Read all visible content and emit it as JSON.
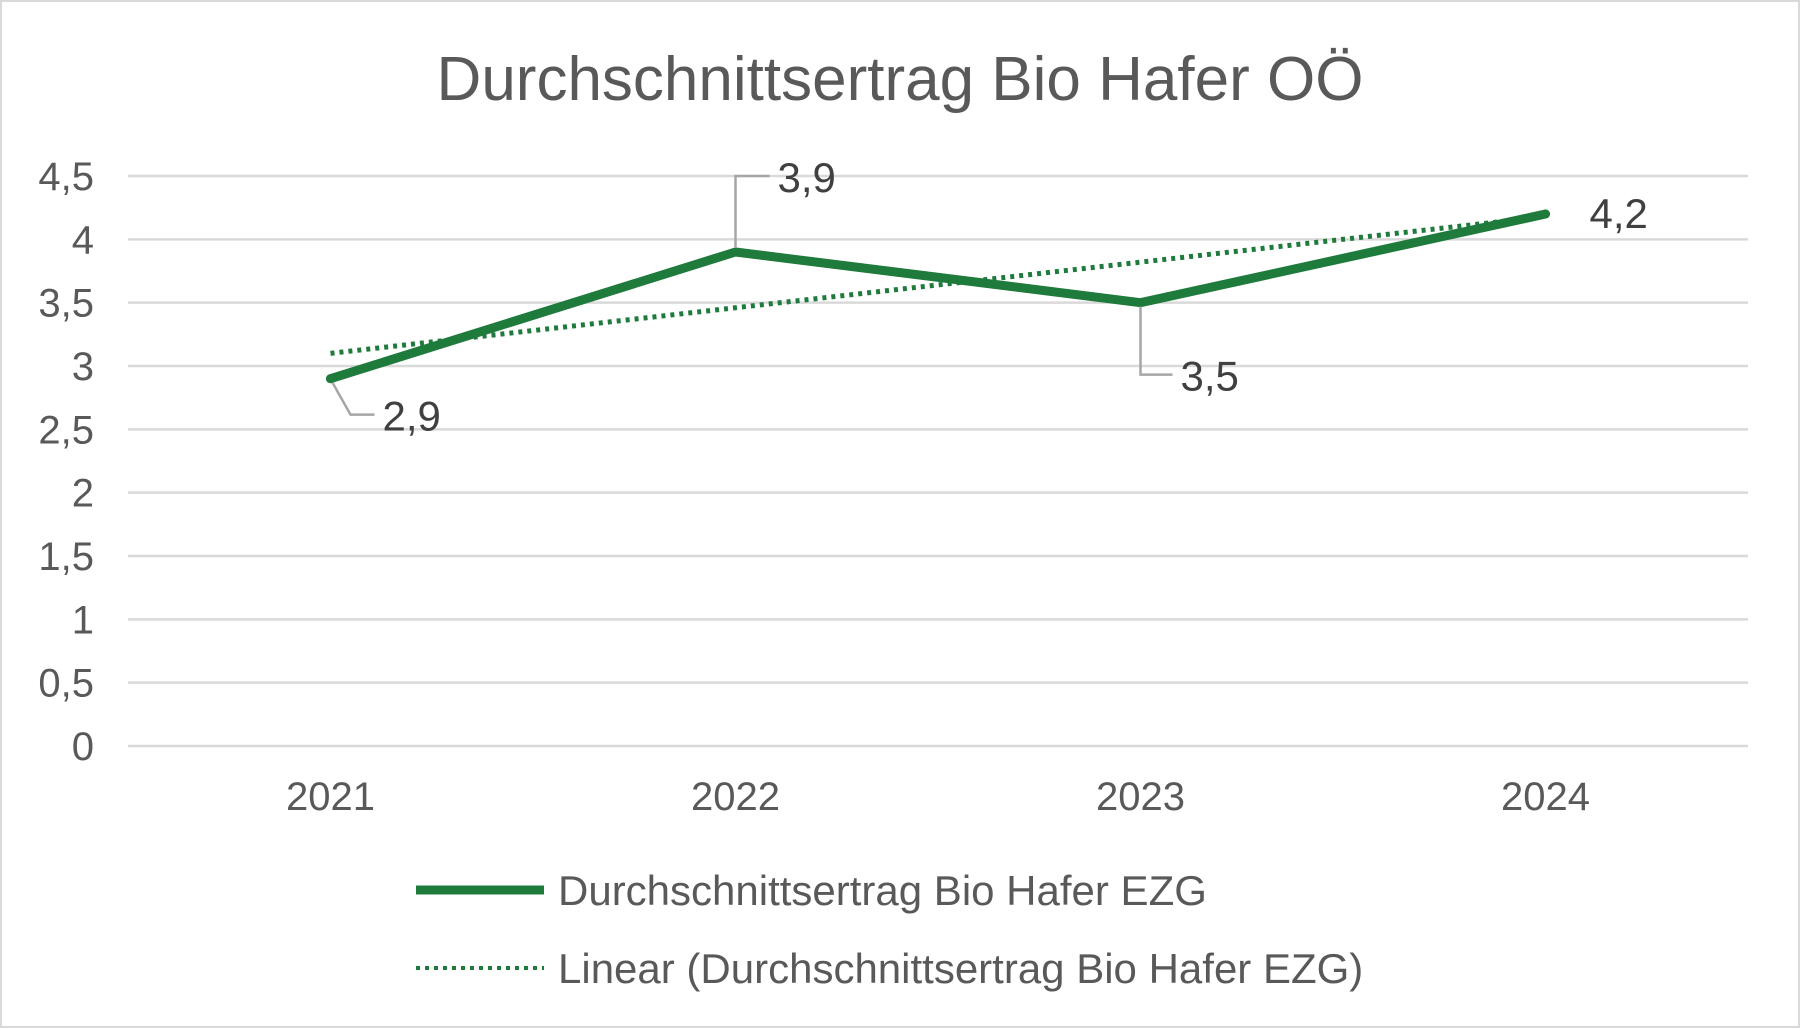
{
  "chart_data": {
    "type": "line",
    "title": "Durchschnittsertrag Bio Hafer OÖ",
    "xlabel": "",
    "ylabel": "",
    "categories": [
      "2021",
      "2022",
      "2023",
      "2024"
    ],
    "series": [
      {
        "name": "Durchschnittsertrag Bio Hafer EZG",
        "values": [
          2.9,
          3.9,
          3.5,
          4.2
        ],
        "data_labels": [
          "2,9",
          "3,9",
          "3,5",
          "4,2"
        ],
        "color": "#1e7b3c"
      },
      {
        "name": "Linear (Durchschnittsertrag Bio Hafer EZG)",
        "values": [
          3.1,
          3.46,
          3.82,
          4.18
        ],
        "color": "#1e7b3c",
        "style": "dotted"
      }
    ],
    "y_ticks": [
      {
        "value": 0,
        "label": "0"
      },
      {
        "value": 0.5,
        "label": "0,5"
      },
      {
        "value": 1,
        "label": "1"
      },
      {
        "value": 1.5,
        "label": "1,5"
      },
      {
        "value": 2,
        "label": "2"
      },
      {
        "value": 2.5,
        "label": "2,5"
      },
      {
        "value": 3,
        "label": "3"
      },
      {
        "value": 3.5,
        "label": "3,5"
      },
      {
        "value": 4,
        "label": "4"
      },
      {
        "value": 4.5,
        "label": "4,5"
      }
    ],
    "ylim": [
      0,
      4.5
    ],
    "grid": true,
    "legend_position": "bottom",
    "colors": {
      "gridline": "#d9d9d9",
      "text": "#595959",
      "leader_line": "#a6a6a6"
    }
  }
}
